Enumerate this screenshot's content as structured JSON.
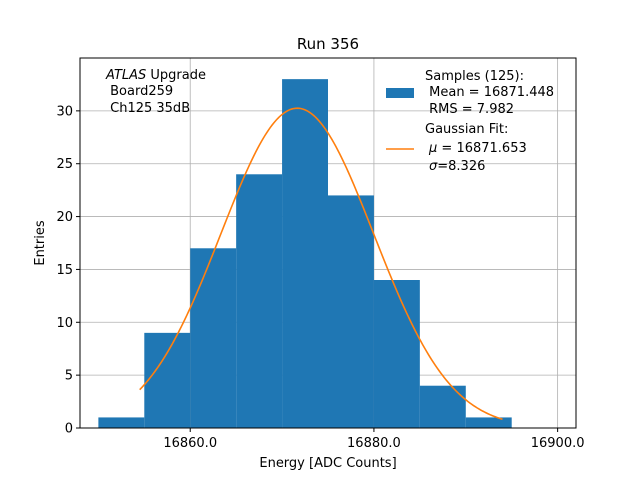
{
  "chart_data": {
    "type": "bar",
    "title": "Run 356",
    "xlabel": "Energy [ADC Counts]",
    "ylabel": "Entries",
    "xlim": [
      16848,
      16902
    ],
    "ylim": [
      0,
      35
    ],
    "xticks": [
      16860,
      16880,
      16900
    ],
    "xtick_labels": [
      "16860.0",
      "16880.0",
      "16900.0"
    ],
    "yticks": [
      0,
      5,
      10,
      15,
      20,
      25,
      30
    ],
    "ytick_labels": [
      "0",
      "5",
      "10",
      "15",
      "20",
      "25",
      "30"
    ],
    "grid": true,
    "bin_edges": [
      16850,
      16855,
      16860,
      16865,
      16870,
      16875,
      16880,
      16885,
      16890,
      16895
    ],
    "counts": [
      1,
      9,
      17,
      24,
      33,
      22,
      14,
      4,
      1
    ],
    "gaussian_fit": {
      "amplitude": 30.25,
      "mu": 16871.653,
      "sigma": 8.326,
      "x_range": [
        16854.5,
        16894
      ]
    },
    "colors": {
      "bars": "#1f77b4",
      "fit": "#ff7f0e"
    },
    "annotation": {
      "italic": "ATLAS",
      "rest": " Upgrade",
      "line2": " Board259",
      "line3": " Ch125 35dB"
    },
    "legend": {
      "placement": "top-right",
      "hist_line1": "Samples (125):",
      "hist_line2": " Mean = 16871.448",
      "hist_line3": " RMS = 7.982",
      "fit_line1": "Gaussian Fit:",
      "fit_mu_symbol": "μ",
      "fit_mu_text": " = 16871.653",
      "fit_sigma_symbol": "σ",
      "fit_sigma_text": "=8.326"
    }
  }
}
